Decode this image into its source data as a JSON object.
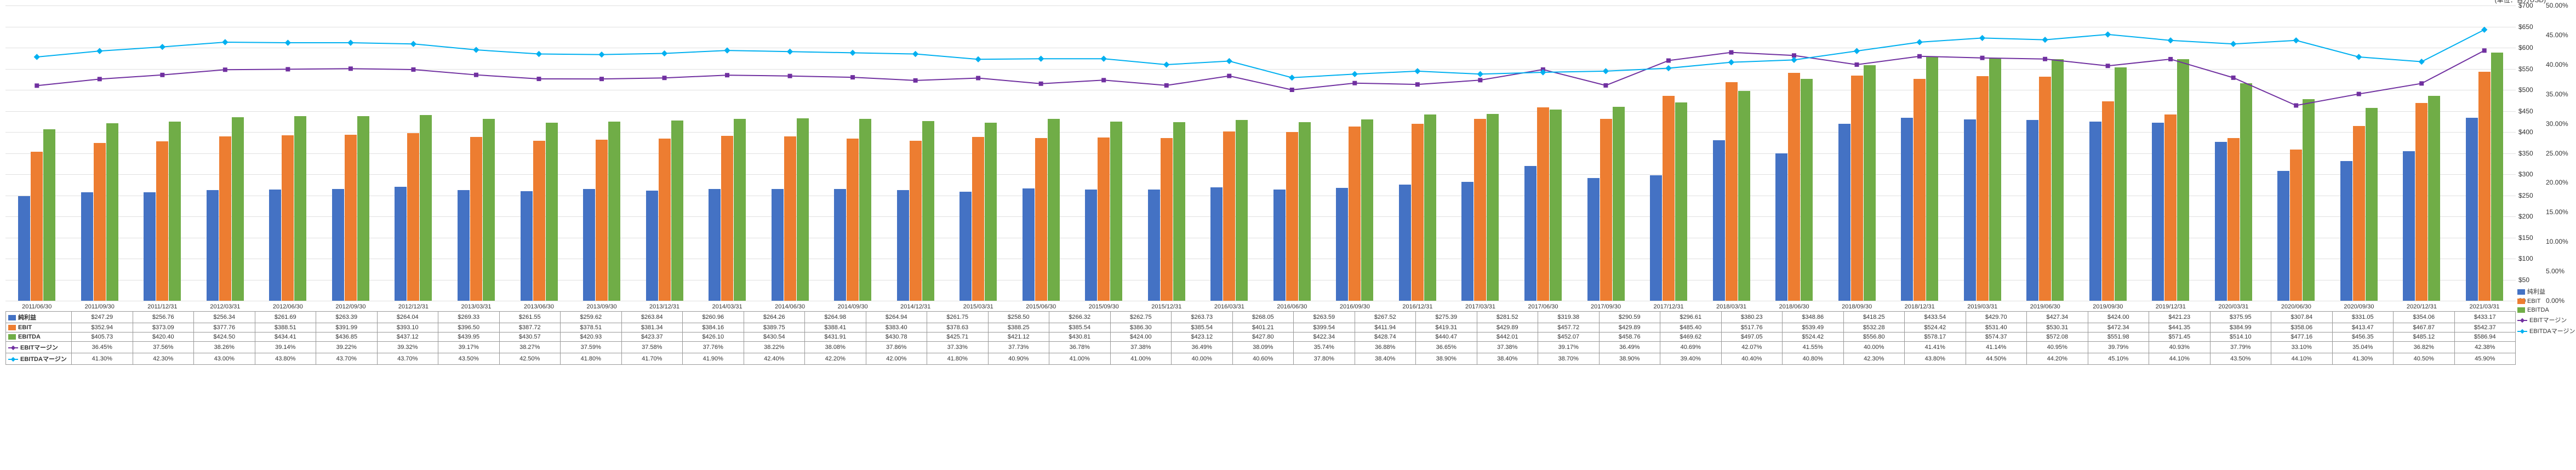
{
  "chart": {
    "type": "combo-bar-line",
    "background_color": "#ffffff",
    "grid_color": "#e0e0e0",
    "currency_unit_label": "(単位：百万USD)",
    "y_left": {
      "min": 0,
      "max": 700,
      "step": 50,
      "prefix": "$"
    },
    "y_right": {
      "min": 0,
      "max": 50,
      "step": 5,
      "suffix": "%"
    },
    "periods": [
      "2011/06/30",
      "2011/09/30",
      "2011/12/31",
      "2012/03/31",
      "2012/06/30",
      "2012/09/30",
      "2012/12/31",
      "2013/03/31",
      "2013/06/30",
      "2013/09/30",
      "2013/12/31",
      "2014/03/31",
      "2014/06/30",
      "2014/09/30",
      "2014/12/31",
      "2015/03/31",
      "2015/06/30",
      "2015/09/30",
      "2015/12/31",
      "2016/03/31",
      "2016/06/30",
      "2016/09/30",
      "2016/12/31",
      "2017/03/31",
      "2017/06/30",
      "2017/09/30",
      "2017/12/31",
      "2018/03/31",
      "2018/06/30",
      "2018/09/30",
      "2018/12/31",
      "2019/03/31",
      "2019/06/30",
      "2019/09/30",
      "2019/12/31",
      "2020/03/31",
      "2020/06/30",
      "2020/09/30",
      "2020/12/31",
      "2021/03/31"
    ],
    "series": {
      "net_income": {
        "label": "純利益",
        "type": "bar",
        "color": "#4472c4",
        "values": [
          247.29,
          256.76,
          256.34,
          261.69,
          263.39,
          264.04,
          269.33,
          261.55,
          259.62,
          263.84,
          260.96,
          264.26,
          264.98,
          264.94,
          261.75,
          258.5,
          266.32,
          262.75,
          263.73,
          268.05,
          263.59,
          267.52,
          275.39,
          281.52,
          319.38,
          290.59,
          296.61,
          380.23,
          348.86,
          418.25,
          433.54,
          429.7,
          427.34,
          424.0,
          421.23,
          375.95,
          307.84,
          331.05,
          354.06,
          433.17
        ]
      },
      "ebit": {
        "label": "EBIT",
        "type": "bar",
        "color": "#ed7d31",
        "values": [
          352.94,
          373.09,
          377.76,
          388.51,
          391.99,
          393.1,
          396.5,
          387.72,
          378.51,
          381.34,
          384.16,
          389.75,
          388.41,
          383.4,
          378.63,
          388.25,
          385.54,
          386.3,
          385.54,
          401.21,
          399.54,
          411.94,
          419.31,
          429.89,
          457.72,
          429.89,
          485.4,
          517.76,
          539.49,
          532.28,
          524.42,
          531.4,
          530.31,
          472.34,
          441.35,
          384.99,
          358.06,
          413.47,
          467.87,
          542.37
        ]
      },
      "ebitda": {
        "label": "EBITDA",
        "type": "bar",
        "color": "#70ad47",
        "values": [
          405.73,
          420.4,
          424.5,
          434.41,
          436.85,
          437.12,
          439.95,
          430.57,
          420.93,
          423.37,
          426.1,
          430.54,
          431.91,
          430.78,
          425.71,
          421.12,
          430.81,
          424.0,
          423.12,
          427.8,
          422.34,
          428.74,
          440.47,
          442.01,
          452.07,
          458.76,
          469.62,
          497.05,
          524.42,
          556.8,
          578.17,
          574.37,
          572.08,
          551.98,
          571.45,
          514.1,
          477.16,
          456.35,
          485.12,
          586.94
        ]
      },
      "ebit_margin": {
        "label": "EBITマージン",
        "type": "line",
        "color": "#7030a0",
        "marker": "square",
        "format_pct": true,
        "values": [
          36.45,
          37.56,
          38.26,
          39.14,
          39.22,
          39.32,
          39.17,
          38.27,
          37.59,
          37.58,
          37.76,
          38.22,
          38.08,
          37.86,
          37.33,
          37.73,
          36.78,
          37.38,
          36.49,
          38.09,
          35.74,
          36.88,
          36.65,
          37.38,
          39.17,
          36.49,
          40.69,
          42.07,
          41.55,
          40.0,
          41.41,
          41.14,
          40.95,
          39.79,
          40.93,
          37.79,
          33.1,
          35.04,
          36.82,
          42.38
        ]
      },
      "ebitda_margin": {
        "label": "EBITDAマージン",
        "type": "line",
        "color": "#00b0f0",
        "marker": "diamond",
        "format_pct": true,
        "values": [
          41.3,
          42.3,
          43.0,
          43.8,
          43.7,
          43.7,
          43.5,
          42.5,
          41.8,
          41.7,
          41.9,
          42.4,
          42.2,
          42.0,
          41.8,
          40.9,
          41.0,
          41.0,
          40.0,
          40.6,
          37.8,
          38.4,
          38.9,
          38.4,
          38.7,
          38.9,
          39.4,
          40.4,
          40.8,
          42.3,
          43.8,
          44.5,
          44.2,
          45.1,
          44.1,
          43.5,
          44.1,
          41.3,
          40.5,
          45.9
        ]
      }
    },
    "legend_right": [
      {
        "label": "純利益",
        "color": "#4472c4",
        "kind": "bar"
      },
      {
        "label": "EBIT",
        "color": "#ed7d31",
        "kind": "bar"
      },
      {
        "label": "EBITDA",
        "color": "#70ad47",
        "kind": "bar"
      },
      {
        "label": "EBITマージン",
        "color": "#7030a0",
        "kind": "line"
      },
      {
        "label": "EBITDAマージン",
        "color": "#00b0f0",
        "kind": "line"
      }
    ]
  }
}
